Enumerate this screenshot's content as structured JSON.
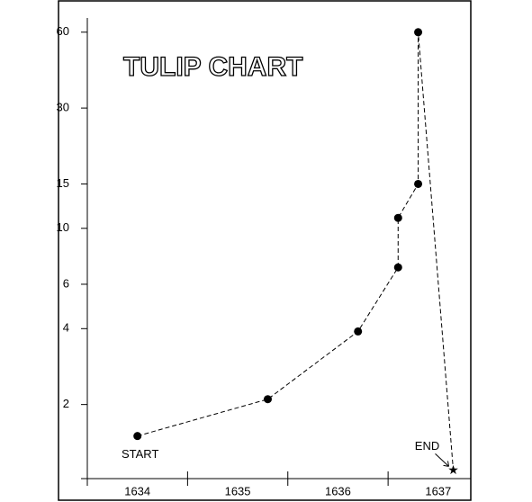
{
  "chart_data": {
    "type": "line",
    "title": "TULIP CHART",
    "x": [
      1634.5,
      1635.8,
      1636.7,
      1637.1,
      1637.1,
      1637.3,
      1637.3,
      1637.65
    ],
    "values": [
      1.5,
      2.1,
      3.9,
      7,
      11,
      15,
      60,
      1.1
    ],
    "color": "#000000",
    "log_y": true,
    "xlim": [
      1634,
      1637.78
    ],
    "xticks": [
      1634,
      1635,
      1636,
      1637
    ],
    "ylim": [
      1,
      70
    ],
    "yticks": [
      2,
      4,
      6,
      10,
      15,
      30,
      60
    ],
    "annotations": [
      "START",
      "END"
    ],
    "last_marker": "star"
  }
}
